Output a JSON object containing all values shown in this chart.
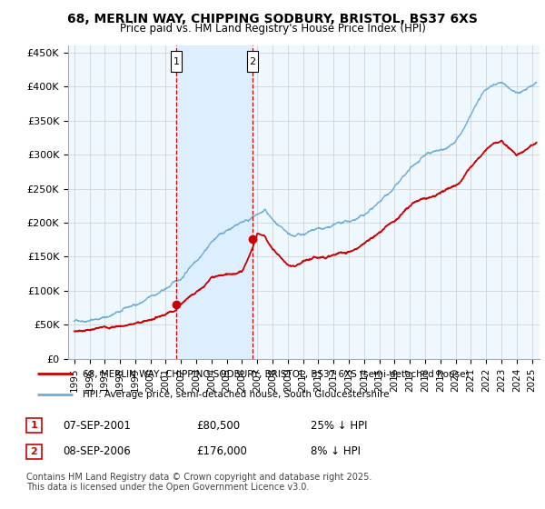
{
  "title_line1": "68, MERLIN WAY, CHIPPING SODBURY, BRISTOL, BS37 6XS",
  "title_line2": "Price paid vs. HM Land Registry's House Price Index (HPI)",
  "title_fontsize": 10,
  "subtitle_fontsize": 9,
  "ylabel_ticks": [
    "£0",
    "£50K",
    "£100K",
    "£150K",
    "£200K",
    "£250K",
    "£300K",
    "£350K",
    "£400K",
    "£450K"
  ],
  "ytick_values": [
    0,
    50000,
    100000,
    150000,
    200000,
    250000,
    300000,
    350000,
    400000,
    450000
  ],
  "ylim": [
    0,
    460000
  ],
  "xlim_start": 1994.6,
  "xlim_end": 2025.5,
  "background_color": "#ffffff",
  "plot_bg_color": "#f0f8ff",
  "hpi_line_color": "#6baed6",
  "price_line_color": "#cc0000",
  "purchase1_date": 2001.69,
  "purchase1_price": 80500,
  "purchase2_date": 2006.69,
  "purchase2_price": 176000,
  "vline_color": "#cc0000",
  "vshade_color": "#ddeeff",
  "legend_label1": "68, MERLIN WAY, CHIPPING SODBURY, BRISTOL, BS37 6XS (semi-detached house)",
  "legend_label2": "HPI: Average price, semi-detached house, South Gloucestershire",
  "footnote": "Contains HM Land Registry data © Crown copyright and database right 2025.\nThis data is licensed under the Open Government Licence v3.0.",
  "table_row1": [
    "1",
    "07-SEP-2001",
    "£80,500",
    "25% ↓ HPI"
  ],
  "table_row2": [
    "2",
    "08-SEP-2006",
    "£176,000",
    "8% ↓ HPI"
  ]
}
